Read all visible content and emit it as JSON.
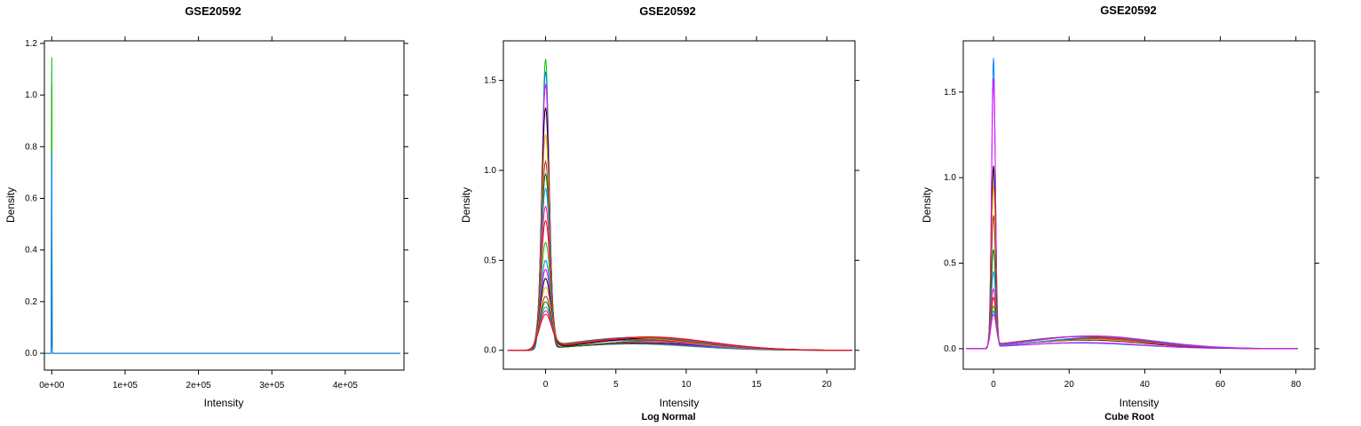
{
  "colors": [
    "#ff0000",
    "#00c000",
    "#0080ff",
    "#ff00ff",
    "#000000",
    "#ffa500",
    "#a52a2a",
    "#008000",
    "#1e90ff",
    "#ff1493"
  ],
  "chart_data": [
    {
      "type": "line",
      "title": "GSE20592",
      "xlabel": "Intensity",
      "ylabel": "Density",
      "subtitle": "",
      "xlim": [
        -10000,
        480000
      ],
      "ylim": [
        -0.065,
        1.21
      ],
      "xticks": [
        0,
        100000,
        200000,
        300000,
        400000
      ],
      "xtick_labels": [
        "0e+00",
        "1e+05",
        "2e+05",
        "3e+05",
        "4e+05"
      ],
      "yticks": [
        0.0,
        0.2,
        0.4,
        0.6,
        0.8,
        1.0,
        1.2
      ],
      "ytick_labels": [
        "0.0",
        "0.2",
        "0.4",
        "0.6",
        "0.8",
        "1.0",
        "1.2"
      ],
      "peak_x": 0,
      "peak_heights": [
        1.04,
        1.15,
        0.78
      ],
      "peak_width": 400,
      "tail_max": 475000,
      "n_curves": 3
    },
    {
      "type": "line",
      "title": "GSE20592",
      "xlabel": "Intensity",
      "ylabel": "Density",
      "subtitle": "Log Normal",
      "xlim": [
        -3,
        22
      ],
      "ylim": [
        -0.105,
        1.72
      ],
      "xticks": [
        0,
        5,
        10,
        15,
        20
      ],
      "xtick_labels": [
        "0",
        "5",
        "10",
        "15",
        "20"
      ],
      "yticks": [
        0.0,
        0.5,
        1.0,
        1.5
      ],
      "ytick_labels": [
        "0.0",
        "0.5",
        "1.0",
        "1.5"
      ],
      "peak_x": 0,
      "peak_heights": [
        1.62,
        1.55,
        1.48,
        1.35,
        1.2,
        1.05,
        0.98,
        0.9,
        0.8,
        0.72,
        0.6,
        0.5,
        0.45,
        0.4,
        0.35,
        0.3,
        0.27,
        0.24,
        0.22,
        0.2
      ],
      "peak_width": 0.35,
      "tail_max": 21.8,
      "n_curves": 20
    },
    {
      "type": "line",
      "title": "GSE20592",
      "xlabel": "Intensity",
      "ylabel": "Density",
      "subtitle": "Cube Root",
      "xlim": [
        -8,
        85
      ],
      "ylim": [
        -0.12,
        1.8
      ],
      "xticks": [
        0,
        20,
        40,
        60,
        80
      ],
      "xtick_labels": [
        "0",
        "20",
        "40",
        "60",
        "80"
      ],
      "yticks": [
        0.0,
        0.5,
        1.0,
        1.5
      ],
      "ytick_labels": [
        "0.0",
        "0.5",
        "1.0",
        "1.5"
      ],
      "peak_x": 0,
      "peak_heights": [
        1.7,
        1.58,
        1.07,
        0.95,
        0.78,
        0.58,
        0.45,
        0.35,
        0.3,
        0.25,
        0.22,
        0.2
      ],
      "peak_width": 0.7,
      "tail_max": 80.5,
      "n_curves": 12
    }
  ]
}
